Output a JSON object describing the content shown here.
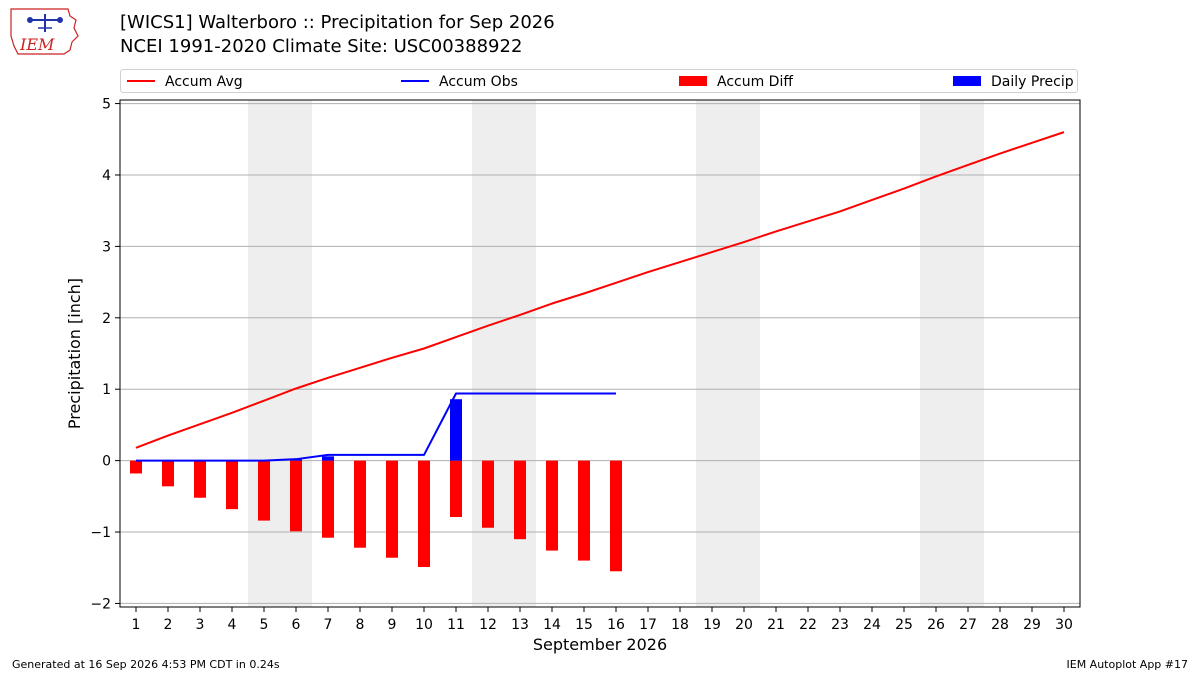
{
  "header": {
    "logo_text": "IEM",
    "title_line1": "[WICS1] Walterboro :: Precipitation for Sep 2026",
    "title_line2": "NCEI 1991-2020 Climate Site: USC00388922"
  },
  "footer": {
    "generated": "Generated at 16 Sep 2026 4:53 PM CDT in 0.24s",
    "app": "IEM Autoplot App #17"
  },
  "colors": {
    "avg": "#ff0000",
    "obs": "#0000ff",
    "diff": "#ff0000",
    "daily": "#0000ff",
    "weekend_band": "#eeeeee",
    "grid": "#b0b0b0"
  },
  "chart_data": {
    "type": "bar",
    "xlabel": "September 2026",
    "ylabel": "Precipitation [inch]",
    "xlim": [
      0.5,
      30.5
    ],
    "ylim": [
      -2.05,
      5.05
    ],
    "yticks": [
      -2,
      -1,
      0,
      1,
      2,
      3,
      4,
      5
    ],
    "ytick_labels": [
      "−2",
      "−1",
      "0",
      "1",
      "2",
      "3",
      "4",
      "5"
    ],
    "grid": "horizontal",
    "legend_position": "top",
    "days": [
      1,
      2,
      3,
      4,
      5,
      6,
      7,
      8,
      9,
      10,
      11,
      12,
      13,
      14,
      15,
      16,
      17,
      18,
      19,
      20,
      21,
      22,
      23,
      24,
      25,
      26,
      27,
      28,
      29,
      30
    ],
    "weekend_bands": [
      [
        4.5,
        6.5
      ],
      [
        11.5,
        13.5
      ],
      [
        18.5,
        20.5
      ],
      [
        25.5,
        27.5
      ]
    ],
    "series": [
      {
        "name": "Accum Avg",
        "kind": "line",
        "x": [
          1,
          2,
          3,
          4,
          5,
          6,
          7,
          8,
          9,
          10,
          11,
          12,
          13,
          14,
          15,
          16,
          17,
          18,
          19,
          20,
          21,
          22,
          23,
          24,
          25,
          26,
          27,
          28,
          29,
          30
        ],
        "values": [
          0.18,
          0.35,
          0.51,
          0.67,
          0.84,
          1.01,
          1.16,
          1.3,
          1.44,
          1.57,
          1.73,
          1.89,
          2.04,
          2.2,
          2.34,
          2.49,
          2.64,
          2.78,
          2.92,
          3.06,
          3.21,
          3.35,
          3.49,
          3.65,
          3.81,
          3.98,
          4.14,
          4.3,
          4.45,
          4.6
        ]
      },
      {
        "name": "Accum Obs",
        "kind": "line",
        "x": [
          1,
          2,
          3,
          4,
          5,
          6,
          7,
          8,
          9,
          10,
          11,
          12,
          13,
          14,
          15,
          16
        ],
        "values": [
          0.0,
          0.0,
          0.0,
          0.0,
          0.0,
          0.02,
          0.08,
          0.08,
          0.08,
          0.08,
          0.94,
          0.94,
          0.94,
          0.94,
          0.94,
          0.94
        ]
      },
      {
        "name": "Accum Diff",
        "kind": "bar",
        "x": [
          1,
          2,
          3,
          4,
          5,
          6,
          7,
          8,
          9,
          10,
          11,
          12,
          13,
          14,
          15,
          16
        ],
        "values": [
          -0.18,
          -0.36,
          -0.52,
          -0.68,
          -0.84,
          -0.99,
          -1.08,
          -1.22,
          -1.36,
          -1.49,
          -0.79,
          -0.94,
          -1.1,
          -1.26,
          -1.4,
          -1.55
        ]
      },
      {
        "name": "Daily Precip",
        "kind": "bar",
        "x": [
          1,
          2,
          3,
          4,
          5,
          6,
          7,
          8,
          9,
          10,
          11,
          12,
          13,
          14,
          15,
          16
        ],
        "values": [
          0,
          0,
          0,
          0,
          0,
          0.02,
          0.06,
          0,
          0,
          0,
          0.86,
          0,
          0,
          0,
          0,
          0
        ]
      }
    ]
  }
}
